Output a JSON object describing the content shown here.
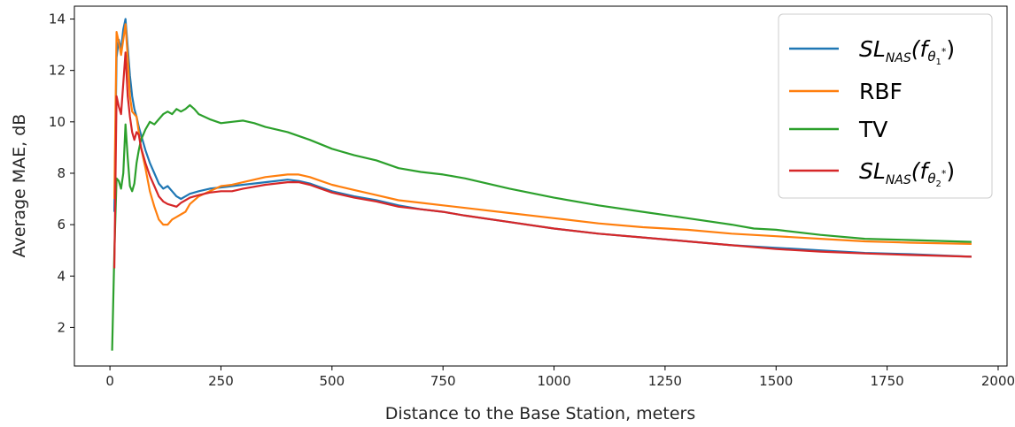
{
  "chart_data": {
    "type": "line",
    "xlabel": "Distance to the Base Station, meters",
    "ylabel": "Average MAE, dB",
    "xlim": [
      -80,
      2020
    ],
    "ylim": [
      0.5,
      14.5
    ],
    "xticks": [
      0,
      250,
      500,
      750,
      1000,
      1250,
      1500,
      1750,
      2000
    ],
    "yticks": [
      2,
      4,
      6,
      8,
      10,
      12,
      14
    ],
    "grid": false,
    "legend_position": "top-right",
    "series": [
      {
        "name": "SL_NAS(f_θ1*)",
        "color": "#1f77b4",
        "x": [
          10,
          15,
          20,
          25,
          30,
          35,
          40,
          45,
          50,
          55,
          60,
          65,
          70,
          75,
          80,
          90,
          100,
          110,
          120,
          130,
          140,
          150,
          160,
          170,
          180,
          200,
          225,
          250,
          275,
          300,
          350,
          400,
          425,
          450,
          475,
          500,
          550,
          600,
          650,
          700,
          750,
          800,
          900,
          1000,
          1100,
          1200,
          1300,
          1400,
          1500,
          1600,
          1700,
          1800,
          1940
        ],
        "y": [
          6.5,
          12.5,
          13.2,
          12.8,
          13.6,
          14.0,
          12.9,
          11.8,
          11.0,
          10.5,
          10.2,
          9.8,
          9.5,
          9.2,
          8.9,
          8.4,
          8.0,
          7.6,
          7.4,
          7.5,
          7.3,
          7.1,
          7.0,
          7.1,
          7.2,
          7.3,
          7.4,
          7.45,
          7.5,
          7.55,
          7.65,
          7.75,
          7.7,
          7.6,
          7.45,
          7.3,
          7.1,
          6.95,
          6.75,
          6.6,
          6.5,
          6.35,
          6.1,
          5.85,
          5.65,
          5.5,
          5.35,
          5.2,
          5.1,
          5.0,
          4.9,
          4.85,
          4.75
        ]
      },
      {
        "name": "RBF",
        "color": "#ff7f0e",
        "x": [
          10,
          15,
          20,
          25,
          30,
          35,
          40,
          45,
          50,
          55,
          60,
          65,
          70,
          75,
          80,
          90,
          100,
          110,
          120,
          130,
          140,
          150,
          160,
          170,
          180,
          200,
          225,
          250,
          275,
          300,
          350,
          400,
          425,
          450,
          475,
          500,
          550,
          600,
          650,
          700,
          750,
          800,
          900,
          1000,
          1100,
          1200,
          1300,
          1400,
          1500,
          1600,
          1700,
          1800,
          1940
        ],
        "y": [
          7.0,
          13.5,
          13.1,
          12.6,
          13.2,
          13.8,
          12.5,
          11.0,
          10.4,
          10.3,
          10.2,
          9.6,
          9.0,
          8.6,
          8.2,
          7.3,
          6.7,
          6.2,
          6.0,
          6.0,
          6.2,
          6.3,
          6.4,
          6.5,
          6.8,
          7.1,
          7.3,
          7.5,
          7.55,
          7.65,
          7.85,
          7.95,
          7.95,
          7.85,
          7.7,
          7.55,
          7.35,
          7.15,
          6.95,
          6.85,
          6.75,
          6.65,
          6.45,
          6.25,
          6.05,
          5.9,
          5.8,
          5.65,
          5.55,
          5.45,
          5.35,
          5.3,
          5.25
        ]
      },
      {
        "name": "TV",
        "color": "#2ca02c",
        "x": [
          5,
          10,
          15,
          20,
          25,
          30,
          35,
          40,
          45,
          50,
          55,
          60,
          65,
          70,
          75,
          80,
          90,
          100,
          110,
          120,
          130,
          140,
          150,
          160,
          170,
          180,
          190,
          200,
          225,
          250,
          275,
          300,
          325,
          350,
          400,
          450,
          500,
          550,
          600,
          650,
          700,
          750,
          800,
          900,
          1000,
          1100,
          1200,
          1300,
          1400,
          1450,
          1500,
          1600,
          1700,
          1800,
          1940
        ],
        "y": [
          1.1,
          4.9,
          7.8,
          7.7,
          7.4,
          8.0,
          9.9,
          8.6,
          7.5,
          7.3,
          7.6,
          8.4,
          8.9,
          9.3,
          9.5,
          9.7,
          10.0,
          9.9,
          10.1,
          10.3,
          10.4,
          10.3,
          10.5,
          10.4,
          10.5,
          10.65,
          10.5,
          10.3,
          10.1,
          9.95,
          10.0,
          10.05,
          9.95,
          9.8,
          9.6,
          9.3,
          8.95,
          8.7,
          8.5,
          8.2,
          8.05,
          7.95,
          7.8,
          7.4,
          7.05,
          6.75,
          6.5,
          6.25,
          6.0,
          5.85,
          5.8,
          5.6,
          5.45,
          5.4,
          5.33
        ]
      },
      {
        "name": "SL_NAS(f_θ2*)",
        "color": "#d62728",
        "x": [
          10,
          15,
          20,
          25,
          30,
          35,
          40,
          45,
          50,
          55,
          60,
          65,
          70,
          75,
          80,
          90,
          100,
          110,
          120,
          130,
          140,
          150,
          160,
          170,
          180,
          200,
          225,
          250,
          275,
          300,
          350,
          400,
          425,
          450,
          475,
          500,
          550,
          600,
          650,
          700,
          750,
          800,
          900,
          1000,
          1100,
          1200,
          1300,
          1400,
          1500,
          1600,
          1700,
          1800,
          1940
        ],
        "y": [
          4.3,
          11.0,
          10.6,
          10.3,
          11.5,
          12.7,
          11.0,
          10.2,
          9.6,
          9.3,
          9.6,
          9.5,
          9.0,
          8.7,
          8.4,
          7.9,
          7.5,
          7.1,
          6.9,
          6.8,
          6.75,
          6.7,
          6.85,
          6.95,
          7.05,
          7.15,
          7.25,
          7.3,
          7.3,
          7.4,
          7.55,
          7.65,
          7.65,
          7.55,
          7.4,
          7.25,
          7.05,
          6.9,
          6.7,
          6.6,
          6.5,
          6.35,
          6.1,
          5.85,
          5.65,
          5.5,
          5.35,
          5.2,
          5.05,
          4.95,
          4.88,
          4.82,
          4.75
        ]
      }
    ],
    "legend": [
      {
        "prefix": "SL",
        "sub": "NAS",
        "arg_open": "(f",
        "theta": "θ",
        "theta_sub": "1",
        "star": "*",
        "arg_close": ")",
        "color": "#1f77b4"
      },
      {
        "text": "RBF",
        "color": "#ff7f0e"
      },
      {
        "text": "TV",
        "color": "#2ca02c"
      },
      {
        "prefix": "SL",
        "sub": "NAS",
        "arg_open": "(f",
        "theta": "θ",
        "theta_sub": "2",
        "star": "*",
        "arg_close": ")",
        "color": "#d62728"
      }
    ]
  }
}
